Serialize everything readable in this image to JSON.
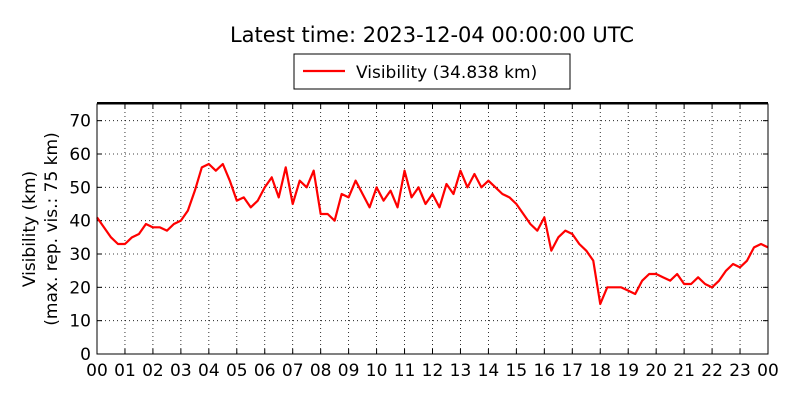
{
  "chart_data": {
    "type": "line",
    "title": "Latest time: 2023-12-04 00:00:00 UTC",
    "ylabel": [
      "Visibility (km)",
      "(max. rep. vis.: 75 km)"
    ],
    "x": [
      0,
      0.25,
      0.5,
      0.75,
      1,
      1.25,
      1.5,
      1.75,
      2,
      2.25,
      2.5,
      2.75,
      3,
      3.25,
      3.5,
      3.75,
      4,
      4.25,
      4.5,
      4.75,
      5,
      5.25,
      5.5,
      5.75,
      6,
      6.25,
      6.5,
      6.75,
      7,
      7.25,
      7.5,
      7.75,
      8,
      8.25,
      8.5,
      8.75,
      9,
      9.25,
      9.5,
      9.75,
      10,
      10.25,
      10.5,
      10.75,
      11,
      11.25,
      11.5,
      11.75,
      12,
      12.25,
      12.5,
      12.75,
      13,
      13.25,
      13.5,
      13.75,
      14,
      14.25,
      14.5,
      14.75,
      15,
      15.25,
      15.5,
      15.75,
      16,
      16.25,
      16.5,
      16.75,
      17,
      17.25,
      17.5,
      17.75,
      18,
      18.25,
      18.5,
      18.75,
      19,
      19.25,
      19.5,
      19.75,
      20,
      20.25,
      20.5,
      20.75,
      21,
      21.25,
      21.5,
      21.75,
      22,
      22.25,
      22.5,
      22.75,
      23,
      23.25,
      23.5,
      23.75,
      24
    ],
    "series": [
      {
        "name": "Visibility (34.838 km)",
        "color": "#ff0000",
        "values": [
          41,
          38,
          35,
          33,
          33,
          35,
          36,
          39,
          38,
          38,
          37,
          39,
          40,
          43,
          49,
          56,
          57,
          55,
          57,
          52,
          46,
          47,
          44,
          46,
          50,
          53,
          47,
          56,
          45,
          52,
          50,
          55,
          42,
          42,
          40,
          48,
          47,
          52,
          48,
          44,
          50,
          46,
          49,
          44,
          55,
          47,
          50,
          45,
          48,
          44,
          51,
          48,
          55,
          50,
          54,
          50,
          52,
          50,
          48,
          47,
          45,
          42,
          39,
          37,
          41,
          31,
          35,
          37,
          36,
          33,
          31,
          28,
          15,
          20,
          20,
          20,
          19,
          18,
          22,
          24,
          24,
          23,
          22,
          24,
          21,
          21,
          23,
          21,
          20,
          22,
          25,
          27,
          26,
          28,
          32,
          33,
          32
        ]
      }
    ],
    "xlim": [
      0,
      24
    ],
    "xticks": [
      {
        "value": 0,
        "label": "00"
      },
      {
        "value": 1,
        "label": "01"
      },
      {
        "value": 2,
        "label": "02"
      },
      {
        "value": 3,
        "label": "03"
      },
      {
        "value": 4,
        "label": "04"
      },
      {
        "value": 5,
        "label": "05"
      },
      {
        "value": 6,
        "label": "06"
      },
      {
        "value": 7,
        "label": "07"
      },
      {
        "value": 8,
        "label": "08"
      },
      {
        "value": 9,
        "label": "09"
      },
      10,
      11,
      12,
      13,
      14,
      15,
      16,
      17,
      18,
      19,
      20,
      21,
      22,
      23,
      {
        "value": 24,
        "label": "00"
      }
    ],
    "ylim": [
      0,
      75
    ],
    "yticks": [
      0,
      10,
      20,
      30,
      40,
      50,
      60,
      70
    ],
    "grid": true
  }
}
